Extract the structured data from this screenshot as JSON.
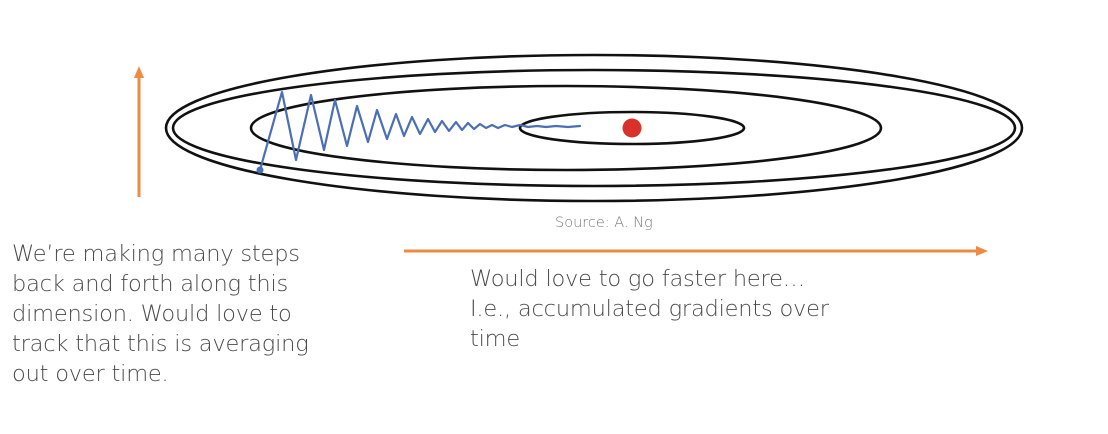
{
  "source_caption": "Source: A. Ng",
  "left_note": {
    "lines": [
      "We’re making many steps",
      "back and forth along this",
      "dimension. Would love to",
      "track that this is averaging",
      "out over time."
    ]
  },
  "right_note": {
    "lines": [
      "Would love to go faster here…",
      "I.e., accumulated gradients over",
      "time"
    ]
  },
  "colors": {
    "arrow": "#ed8b45",
    "contour": "#111111",
    "path": "#4a6fb5",
    "optimum": "#d9322a",
    "text": "#4a4a4a"
  },
  "icons": {
    "vertical_arrow": "arrow-up-icon",
    "horizontal_arrow": "arrow-right-icon",
    "optimum_point": "red-dot-icon"
  }
}
